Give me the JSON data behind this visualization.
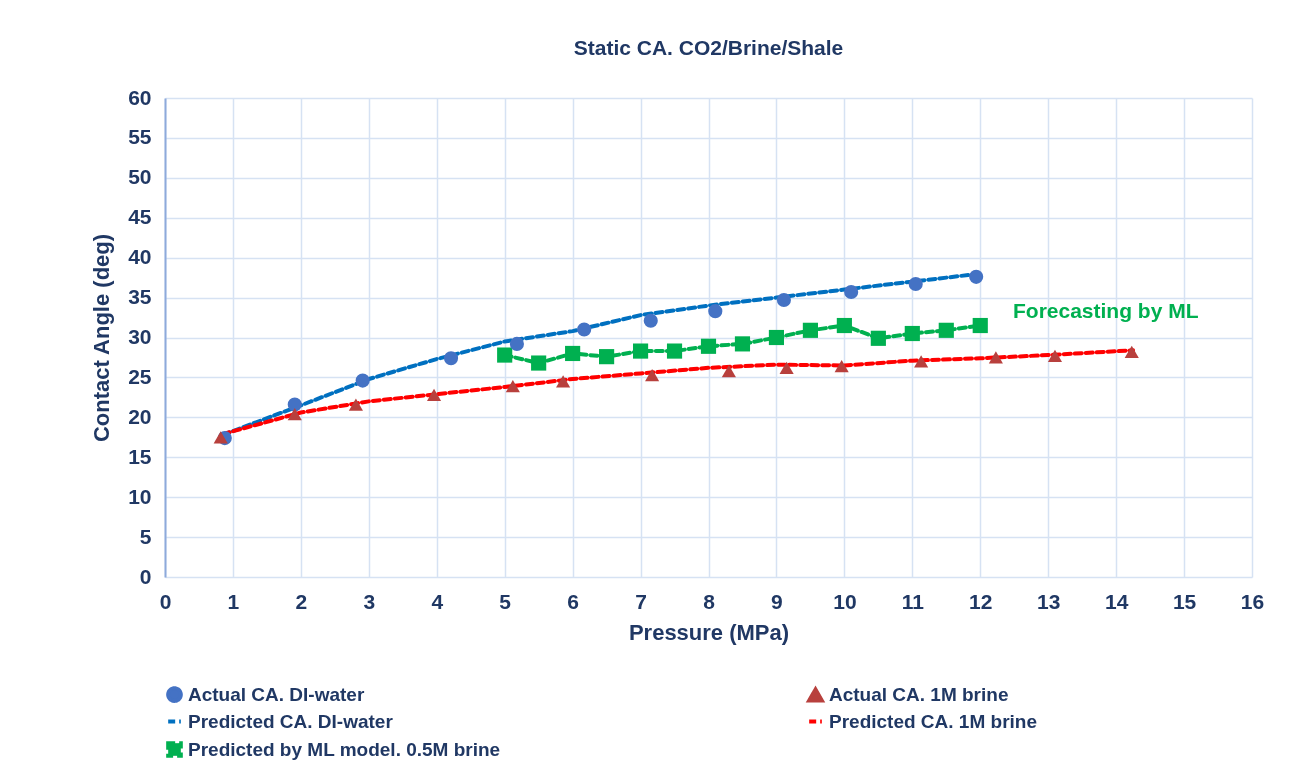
{
  "chart_data": {
    "type": "line",
    "title": "Static CA. CO2/Brine/Shale",
    "xlabel": "Pressure (MPa)",
    "ylabel": "Contact Angle (deg)",
    "xlim": [
      0,
      16
    ],
    "xticks": [
      0,
      1,
      2,
      3,
      4,
      5,
      6,
      7,
      8,
      9,
      10,
      11,
      12,
      13,
      14,
      15,
      16
    ],
    "ylim": [
      0,
      60
    ],
    "yticks": [
      0,
      5,
      10,
      15,
      20,
      25,
      30,
      35,
      40,
      45,
      50,
      55,
      60
    ],
    "grid": true,
    "legend": "bottom",
    "annotations": [
      "Forecasting by ML"
    ],
    "series": [
      {
        "name": "Actual CA. DI-water",
        "type": "scatter",
        "marker": "circle",
        "color": "#4472c4",
        "x": [
          0.88,
          1.91,
          2.91,
          4.21,
          5.18,
          6.17,
          7.15,
          8.1,
          9.11,
          10.1,
          11.05,
          11.94
        ],
        "values": [
          17.4,
          21.6,
          24.6,
          27.4,
          29.2,
          31.0,
          32.1,
          33.3,
          34.7,
          35.7,
          36.7,
          37.6
        ]
      },
      {
        "name": "Actual CA. 1M brine",
        "type": "scatter",
        "marker": "triangle",
        "color": "#b8403d",
        "x": [
          0.82,
          1.91,
          2.81,
          3.96,
          5.12,
          5.86,
          7.17,
          8.3,
          9.15,
          9.96,
          11.13,
          12.23,
          13.1,
          14.23
        ],
        "values": [
          17.5,
          20.4,
          21.6,
          22.8,
          23.9,
          24.5,
          25.3,
          25.8,
          26.2,
          26.4,
          27.0,
          27.5,
          27.7,
          28.2
        ]
      },
      {
        "name": "Predicted CA. DI-water",
        "type": "line",
        "line_style": "dashed",
        "color": "#0070c0",
        "x": [
          0.85,
          2,
          3,
          4,
          5,
          6,
          7,
          8,
          9,
          10,
          11,
          12
        ],
        "values": [
          17.8,
          21.5,
          24.8,
          27.3,
          29.5,
          30.8,
          32.8,
          34.0,
          35.0,
          36.0,
          37.0,
          38.0
        ]
      },
      {
        "name": "Predicted CA. 1M brine",
        "type": "line",
        "line_style": "dashed",
        "color": "#ff0000",
        "x": [
          0.85,
          2,
          3,
          4,
          5,
          6,
          7,
          8,
          9,
          10,
          11,
          12,
          13,
          14.25
        ],
        "values": [
          17.9,
          20.6,
          22.0,
          22.9,
          23.8,
          24.8,
          25.5,
          26.2,
          26.6,
          26.5,
          27.1,
          27.4,
          27.8,
          28.4
        ]
      },
      {
        "name": "Predicted by ML model. 0.5M brine",
        "type": "line",
        "line_style": "dashed",
        "marker": "square",
        "color": "#00b050",
        "x": [
          5,
          5.5,
          6,
          6.5,
          7,
          7.5,
          8,
          8.5,
          9,
          9.5,
          10,
          10.5,
          11,
          11.5,
          12
        ],
        "values": [
          27.8,
          26.8,
          28.0,
          27.6,
          28.3,
          28.3,
          28.9,
          29.2,
          30.0,
          30.9,
          31.5,
          29.9,
          30.5,
          30.9,
          31.5
        ]
      }
    ]
  }
}
